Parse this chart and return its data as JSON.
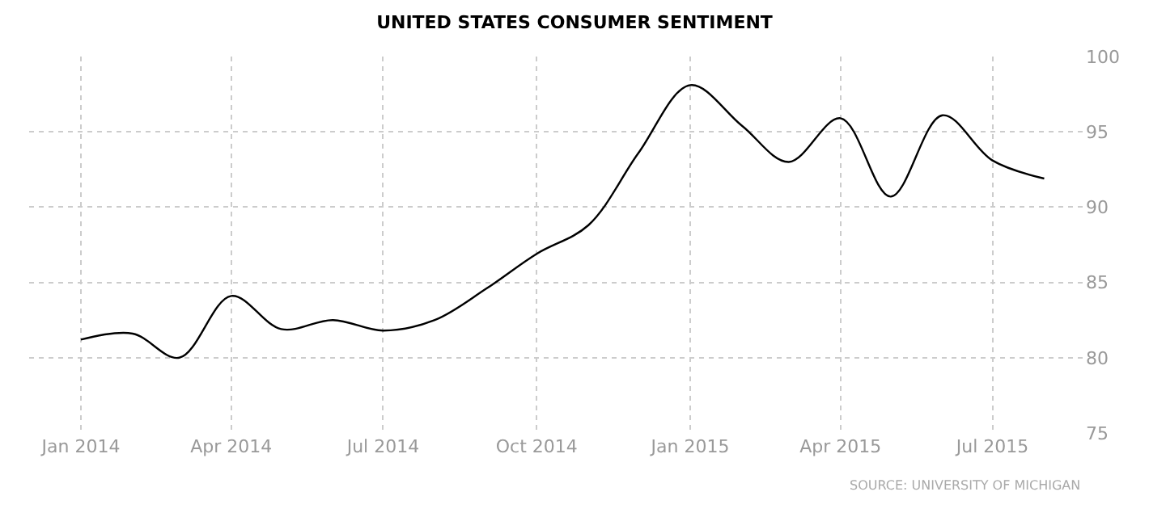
{
  "chart_data": {
    "type": "line",
    "title": "UNITED STATES CONSUMER SENTIMENT",
    "x": [
      "2014-01",
      "2014-02",
      "2014-03",
      "2014-04",
      "2014-05",
      "2014-06",
      "2014-07",
      "2014-08",
      "2014-09",
      "2014-10",
      "2014-11",
      "2014-12",
      "2015-01",
      "2015-02",
      "2015-03",
      "2015-04",
      "2015-05",
      "2015-06",
      "2015-07",
      "2015-08"
    ],
    "series": [
      {
        "color": "#000000",
        "values": [
          81.2,
          81.6,
          80.0,
          84.1,
          81.9,
          82.5,
          81.8,
          82.5,
          84.6,
          86.9,
          88.8,
          93.6,
          98.1,
          95.4,
          93.0,
          95.9,
          90.7,
          96.1,
          93.1,
          91.9
        ]
      }
    ],
    "xlim": [
      "2013-12-01",
      "2015-08-25"
    ],
    "xticks": [
      {
        "value": "2014-01",
        "label": "Jan 2014"
      },
      {
        "value": "2014-04",
        "label": "Apr 2014"
      },
      {
        "value": "2014-07",
        "label": "Jul 2014"
      },
      {
        "value": "2014-10",
        "label": "Oct 2014"
      },
      {
        "value": "2015-01",
        "label": "Jan 2015"
      },
      {
        "value": "2015-04",
        "label": "Apr 2015"
      },
      {
        "value": "2015-07",
        "label": "Jul 2015"
      }
    ],
    "ylim": [
      75,
      100
    ],
    "yticks": [
      75,
      80,
      85,
      90,
      95,
      100
    ],
    "grid": true,
    "marker": "none",
    "line_style": "solid",
    "annotations": [
      "SOURCE: UNIVERSITY OF MICHIGAN"
    ]
  }
}
